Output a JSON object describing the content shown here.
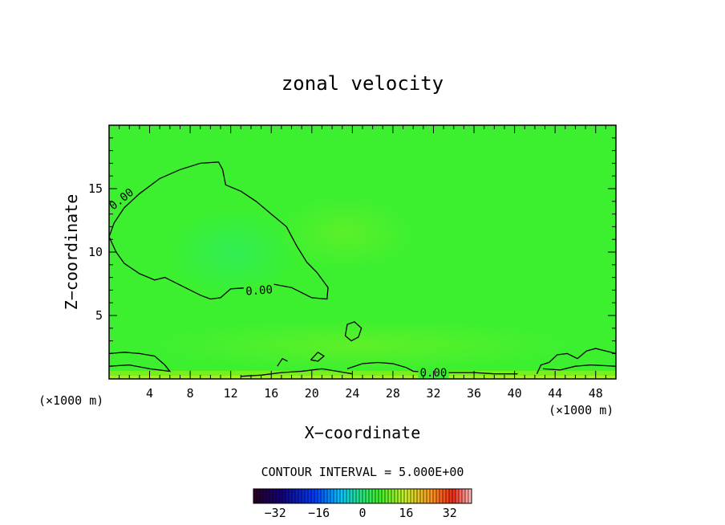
{
  "chart_data": {
    "type": "heatmap",
    "title": "zonal velocity",
    "xlabel": "X−coordinate",
    "ylabel": "Z−coordinate",
    "x_unit": "(×1000 m)",
    "x_unit_right": "(×1000 m)",
    "xlim": [
      0,
      50
    ],
    "ylim": [
      0,
      20
    ],
    "xticks": [
      4,
      8,
      12,
      16,
      20,
      24,
      28,
      32,
      36,
      40,
      44,
      48
    ],
    "yticks": [
      5,
      10,
      15
    ],
    "field_color": "#3cf030",
    "contour_label": "0.00",
    "contour_interval_text": "CONTOUR INTERVAL = 5.000E+00",
    "colorbar": {
      "min": -40,
      "max": 40,
      "ticks": [
        -32,
        -16,
        0,
        16,
        32
      ]
    },
    "contours": [
      {
        "label": "0.00",
        "points": [
          [
            0,
            11.2
          ],
          [
            0.7,
            10.0
          ],
          [
            1.5,
            9.1
          ],
          [
            3,
            8.3
          ],
          [
            4.5,
            7.8
          ],
          [
            5.5,
            8.0
          ],
          [
            7,
            7.4
          ],
          [
            9,
            6.6
          ],
          [
            10,
            6.3
          ],
          [
            11,
            6.4
          ],
          [
            12,
            7.1
          ],
          [
            14,
            7.2
          ],
          [
            16,
            7.5
          ],
          [
            18,
            7.2
          ],
          [
            20,
            6.4
          ],
          [
            21.5,
            6.3
          ],
          [
            21.6,
            7.2
          ],
          [
            20.5,
            8.4
          ],
          [
            19.5,
            9.2
          ],
          [
            18.5,
            10.5
          ],
          [
            17.5,
            12.0
          ],
          [
            16,
            13.0
          ],
          [
            14.5,
            14.0
          ],
          [
            13,
            14.8
          ],
          [
            11.5,
            15.3
          ],
          [
            11.2,
            16.5
          ],
          [
            10.8,
            17.1
          ],
          [
            9,
            17.0
          ],
          [
            7,
            16.5
          ],
          [
            5,
            15.8
          ],
          [
            3,
            14.6
          ],
          [
            1.5,
            13.5
          ],
          [
            0.5,
            12.3
          ],
          [
            0,
            11.2
          ]
        ]
      },
      {
        "label": "0.00",
        "points": [
          [
            23.3,
            3.4
          ],
          [
            23.5,
            4.3
          ],
          [
            24.2,
            4.5
          ],
          [
            24.9,
            4.0
          ],
          [
            24.6,
            3.3
          ],
          [
            23.9,
            3.0
          ],
          [
            23.3,
            3.4
          ]
        ]
      },
      {
        "label": "0.00",
        "points": [
          [
            19.9,
            1.5
          ],
          [
            20.6,
            2.1
          ],
          [
            21.2,
            1.8
          ],
          [
            20.6,
            1.4
          ],
          [
            19.9,
            1.5
          ]
        ]
      },
      {
        "label": "0.00",
        "points": [
          [
            16.6,
            1.0
          ],
          [
            17.1,
            1.6
          ],
          [
            17.6,
            1.4
          ]
        ]
      },
      {
        "label": "0.00",
        "points": [
          [
            0,
            2.0
          ],
          [
            1.5,
            2.1
          ],
          [
            3,
            2.0
          ],
          [
            4.5,
            1.8
          ],
          [
            5.5,
            1.1
          ],
          [
            6,
            0.6
          ],
          [
            4,
            0.8
          ],
          [
            2,
            1.1
          ],
          [
            0,
            1.0
          ]
        ]
      },
      {
        "label": "0.00",
        "points": [
          [
            13,
            0.2
          ],
          [
            15,
            0.3
          ],
          [
            17,
            0.5
          ],
          [
            19,
            0.6
          ],
          [
            21,
            0.8
          ],
          [
            22.5,
            0.6
          ],
          [
            24,
            0.4
          ]
        ]
      },
      {
        "label": "0.00",
        "points": [
          [
            23.5,
            0.8
          ],
          [
            25,
            1.2
          ],
          [
            26.5,
            1.3
          ],
          [
            28,
            1.2
          ],
          [
            29.3,
            0.9
          ],
          [
            30,
            0.6
          ],
          [
            32,
            0.5
          ],
          [
            34,
            0.5
          ],
          [
            36,
            0.5
          ],
          [
            38,
            0.4
          ],
          [
            40.3,
            0.4
          ]
        ]
      },
      {
        "label": "0.00",
        "points": [
          [
            42.2,
            0.4
          ],
          [
            42.6,
            1.1
          ],
          [
            43.4,
            1.3
          ],
          [
            44.2,
            1.9
          ],
          [
            45.2,
            2.0
          ],
          [
            46.2,
            1.6
          ],
          [
            47.1,
            2.2
          ],
          [
            48.0,
            2.4
          ],
          [
            49.0,
            2.2
          ],
          [
            50,
            2.0
          ]
        ]
      },
      {
        "label": "0.00",
        "points": [
          [
            42.8,
            0.8
          ],
          [
            44.5,
            0.7
          ],
          [
            46,
            1.0
          ],
          [
            47.5,
            1.1
          ],
          [
            50,
            1.0
          ]
        ]
      }
    ]
  }
}
